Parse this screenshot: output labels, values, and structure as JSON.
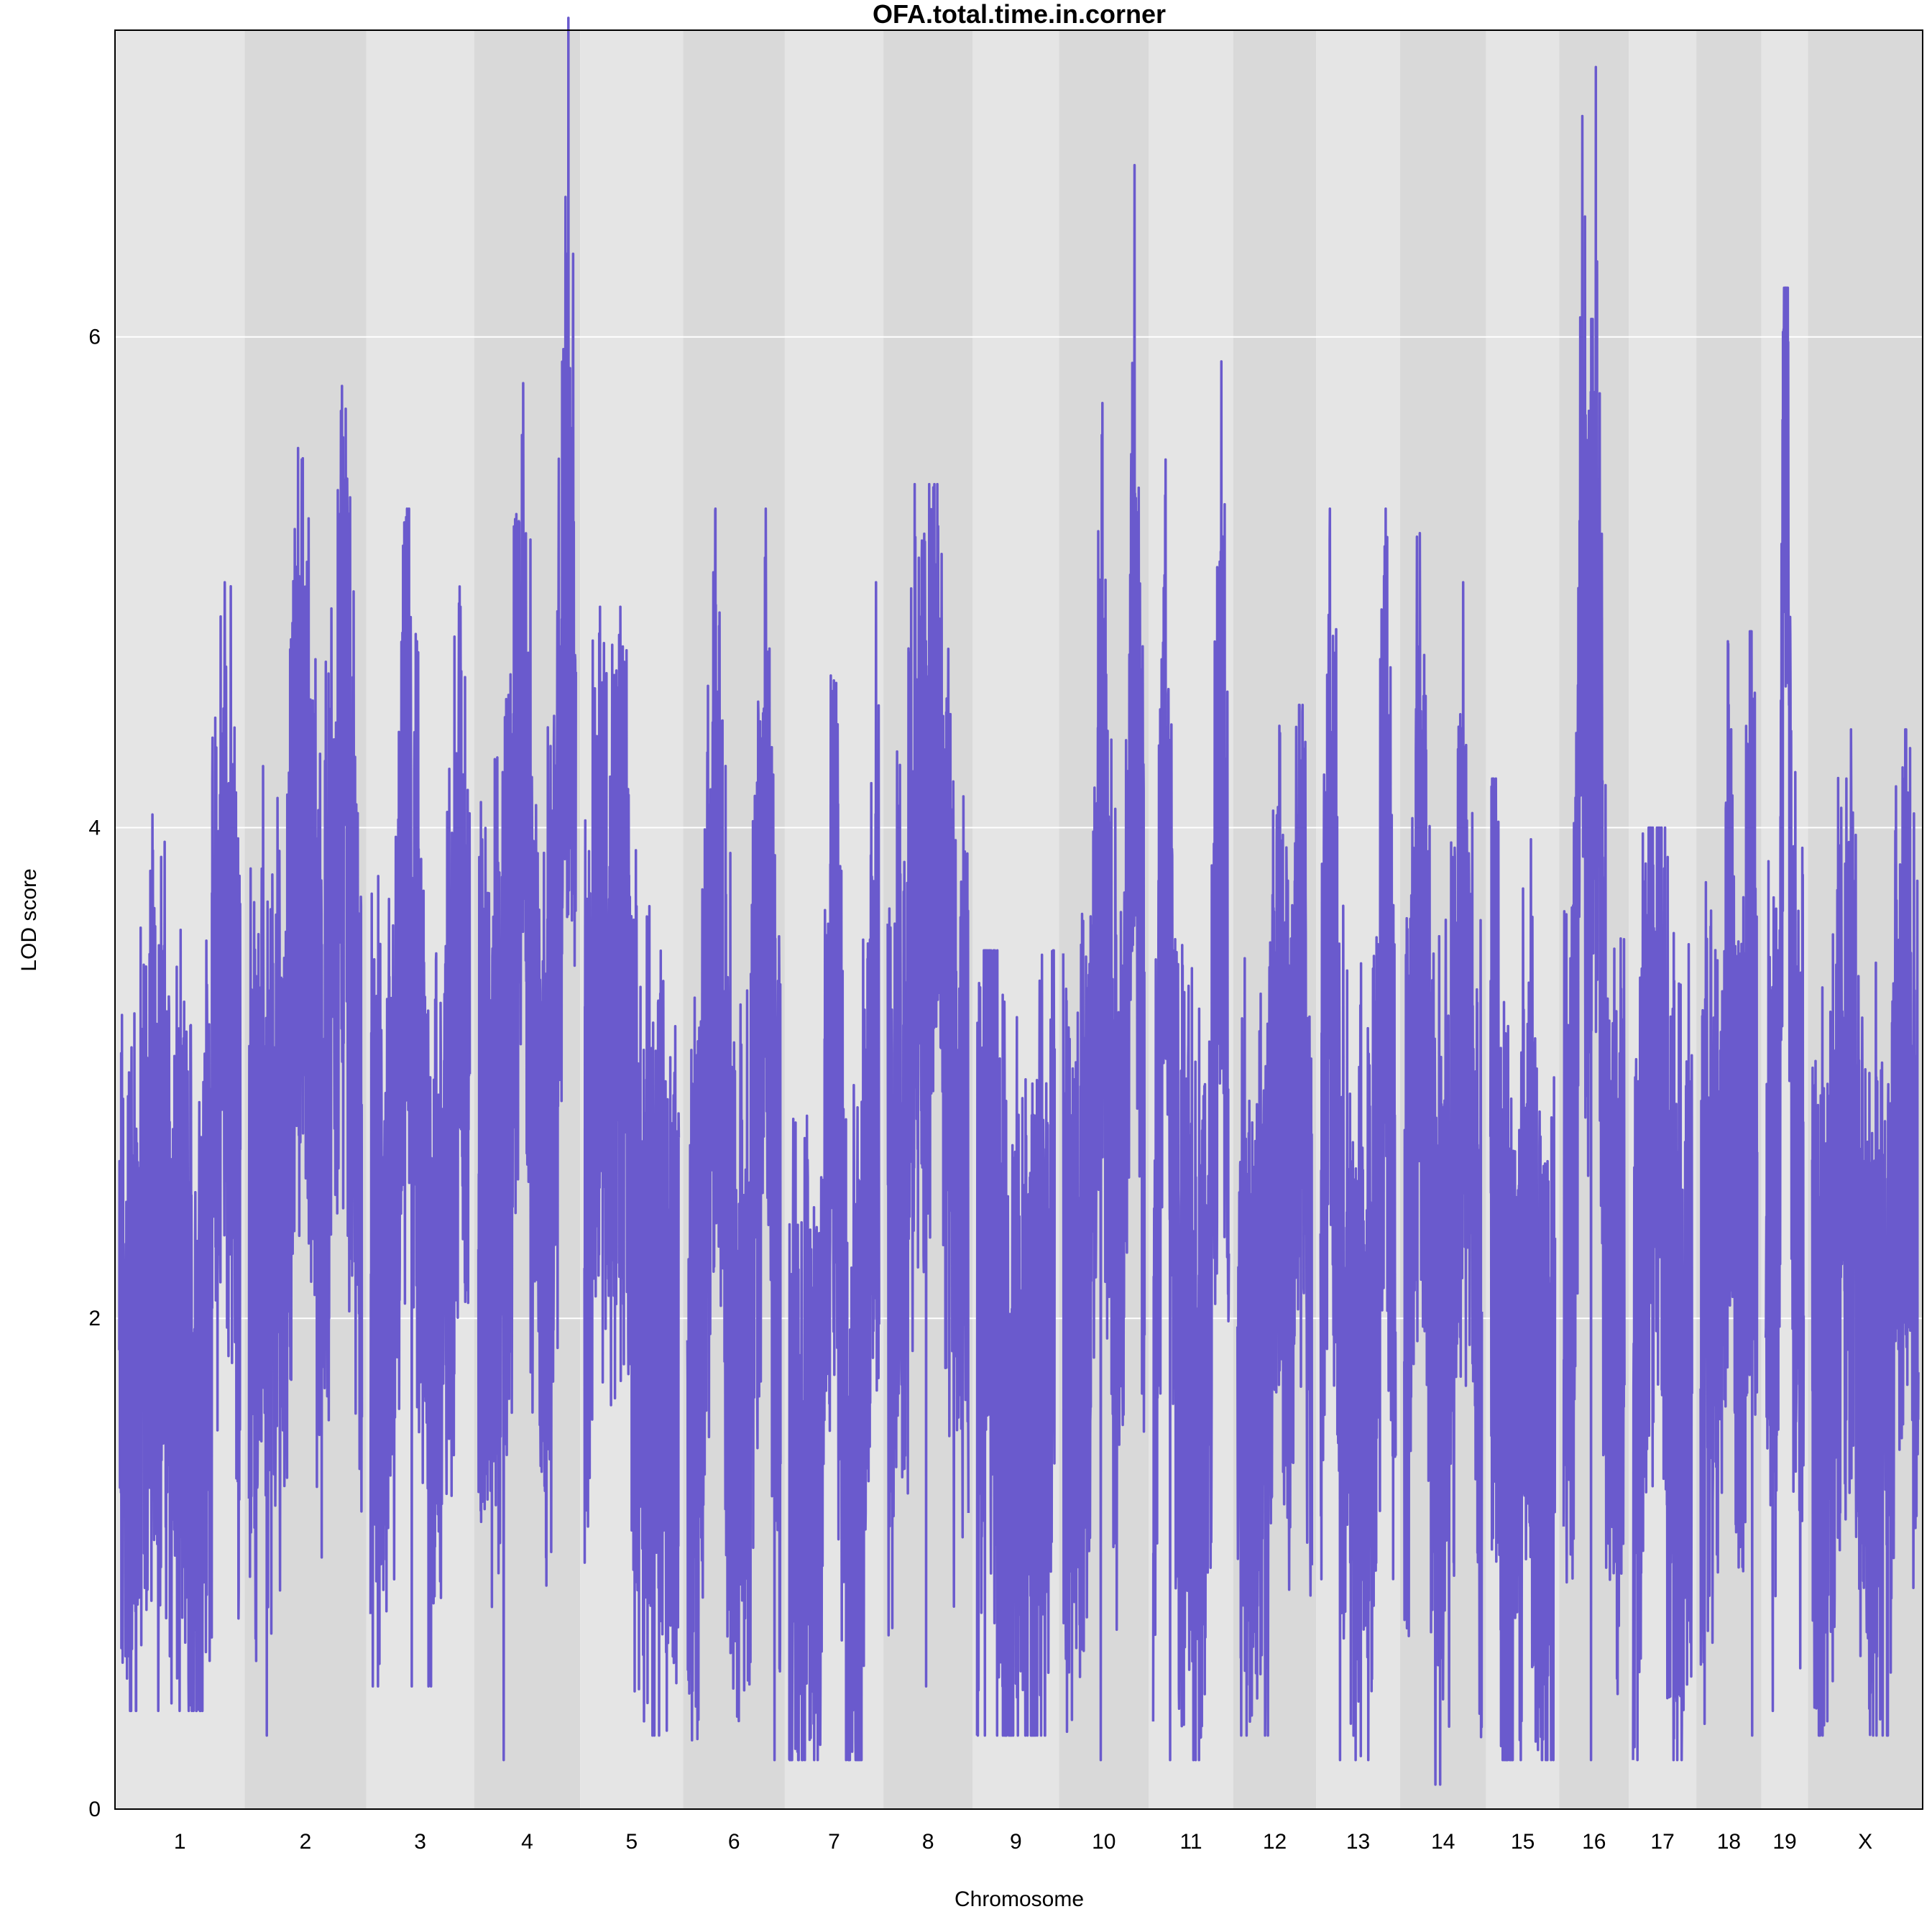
{
  "chart_data": {
    "type": "line",
    "title": "OFA.total.time.in.corner",
    "xlabel": "Chromosome",
    "ylabel": "LOD score",
    "ylim": [
      0,
      7.25
    ],
    "yticks": [
      0,
      2,
      4,
      6
    ],
    "grid": "horizontal",
    "colors": {
      "line": "#6A5ACD",
      "panel_light": "#E5E5E5",
      "panel_dark": "#D9D9D9",
      "grid": "#FFFFFF"
    },
    "categories": [
      "1",
      "2",
      "3",
      "4",
      "5",
      "6",
      "7",
      "8",
      "9",
      "10",
      "11",
      "12",
      "13",
      "14",
      "15",
      "16",
      "17",
      "18",
      "19",
      "X"
    ],
    "chromosome_lengths_mb": [
      195,
      182,
      160,
      157,
      152,
      150,
      145,
      130,
      125,
      131,
      122,
      120,
      121,
      125,
      104,
      98,
      95,
      91,
      61,
      171
    ],
    "series": [
      {
        "points": [
          {
            "chr": "1",
            "peak_mb": [
              60,
              170
            ],
            "peak_lod": [
              3.2,
              5.0
            ],
            "min_lod": 0.4,
            "mean_lod": 1.7
          },
          {
            "chr": "2",
            "peak_mb": [
              85,
              150
            ],
            "peak_lod": [
              5.5,
              5.8
            ],
            "min_lod": 0.3,
            "mean_lod": 2.4
          },
          {
            "chr": "3",
            "peak_mb": [
              62,
              145
            ],
            "peak_lod": [
              5.3,
              4.9
            ],
            "min_lod": 0.5,
            "mean_lod": 2.0
          },
          {
            "chr": "4",
            "peak_mb": [
              70,
              145
            ],
            "peak_lod": [
              5.6,
              7.3
            ],
            "min_lod": 0.2,
            "mean_lod": 2.5
          },
          {
            "chr": "5",
            "peak_mb": [
              25,
              60
            ],
            "peak_lod": [
              4.9,
              4.7
            ],
            "min_lod": 0.3,
            "mean_lod": 1.9
          },
          {
            "chr": "6",
            "peak_mb": [
              45,
              125
            ],
            "peak_lod": [
              5.3,
              5.1
            ],
            "min_lod": 0.2,
            "mean_lod": 1.7
          },
          {
            "chr": "7",
            "peak_mb": [
              72,
              140
            ],
            "peak_lod": [
              4.6,
              5.0
            ],
            "min_lod": 0.2,
            "mean_lod": 1.3
          },
          {
            "chr": "8",
            "peak_mb": [
              50,
              80
            ],
            "peak_lod": [
              5.1,
              5.4
            ],
            "min_lod": 0.5,
            "mean_lod": 2.5
          },
          {
            "chr": "9",
            "peak_mb": [
              20,
              125
            ],
            "peak_lod": [
              3.5,
              3.1
            ],
            "min_lod": 0.3,
            "mean_lod": 1.5
          },
          {
            "chr": "10",
            "peak_mb": [
              62,
              115
            ],
            "peak_lod": [
              5.6,
              6.7
            ],
            "min_lod": 0.2,
            "mean_lod": 2.0
          },
          {
            "chr": "11",
            "peak_mb": [
              20,
              110
            ],
            "peak_lod": [
              5.5,
              5.9
            ],
            "min_lod": 0.2,
            "mean_lod": 1.7
          },
          {
            "chr": "12",
            "peak_mb": [
              65,
              100
            ],
            "peak_lod": [
              3.6,
              4.5
            ],
            "min_lod": 0.3,
            "mean_lod": 1.8
          },
          {
            "chr": "13",
            "peak_mb": [
              15,
              105
            ],
            "peak_lod": [
              5.3,
              5.3
            ],
            "min_lod": 0.2,
            "mean_lod": 1.7
          },
          {
            "chr": "14",
            "peak_mb": [
              25,
              95
            ],
            "peak_lod": [
              5.2,
              5.0
            ],
            "min_lod": 0.1,
            "mean_lod": 1.9
          },
          {
            "chr": "15",
            "peak_mb": [
              5,
              60
            ],
            "peak_lod": [
              4.2,
              3.2
            ],
            "min_lod": 0.2,
            "mean_lod": 1.3
          },
          {
            "chr": "16",
            "peak_mb": [
              30,
              52
            ],
            "peak_lod": [
              6.9,
              7.1
            ],
            "min_lod": 0.2,
            "mean_lod": 2.1
          },
          {
            "chr": "17",
            "peak_mb": [
              25,
              45
            ],
            "peak_lod": [
              4.0,
              3.8
            ],
            "min_lod": 0.2,
            "mean_lod": 1.7
          },
          {
            "chr": "18",
            "peak_mb": [
              45,
              80
            ],
            "peak_lod": [
              4.5,
              4.8
            ],
            "min_lod": 0.3,
            "mean_lod": 2.0
          },
          {
            "chr": "19",
            "peak_mb": [
              30,
              35
            ],
            "peak_lod": [
              6.1,
              6.2
            ],
            "min_lod": 0.4,
            "mean_lod": 2.3
          },
          {
            "chr": "X",
            "peak_mb": [
              55,
              150
            ],
            "peak_lod": [
              4.2,
              4.4
            ],
            "min_lod": 0.3,
            "mean_lod": 1.6
          }
        ]
      }
    ]
  }
}
